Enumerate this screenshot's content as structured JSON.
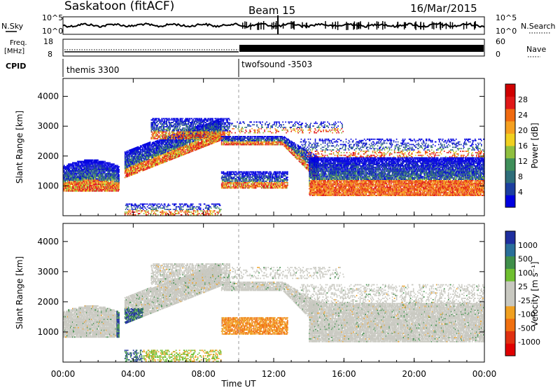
{
  "header": {
    "station": "Saskatoon (fitACF)",
    "beam": "Beam 15",
    "date": "16/Mar/2015"
  },
  "side_labels": {
    "nsky": "N.Sky",
    "freq_line1": "Freq.",
    "freq_line2": "[MHz]",
    "cpid": "CPID",
    "nsearch": "N.Search",
    "nave": "Nave"
  },
  "noise_axis": {
    "top": "10^5",
    "bottom": "10^0",
    "right_top": "10^5",
    "right_bottom": "10^0"
  },
  "freq_axis": {
    "left_ticks": [
      "18",
      "8"
    ],
    "right_ticks": [
      "60",
      "0"
    ]
  },
  "cpid": [
    {
      "label": "themis 3300",
      "start": "00:00"
    },
    {
      "label": "twofsound -3503",
      "start": "10:00"
    }
  ],
  "chart_data": [
    {
      "type": "heatmap",
      "panel": "power",
      "ylabel": "Slant Range [km]",
      "yticks": [
        "1000",
        "2000",
        "3000",
        "4000"
      ],
      "ylim": [
        0,
        4600
      ],
      "xlim": [
        0,
        24
      ],
      "colorbar": {
        "label": "Power [dB]",
        "ticks": [
          "4",
          "8",
          "12",
          "16",
          "20",
          "24",
          "28"
        ],
        "colors": [
          "#0000e0",
          "#1c3fa0",
          "#2e6e7a",
          "#3f8f5a",
          "#8fbf3f",
          "#f0d020",
          "#f5a020",
          "#f06a10",
          "#e01818",
          "#d00000"
        ]
      }
    },
    {
      "type": "heatmap",
      "panel": "velocity",
      "ylabel": "Slant Range [km]",
      "yticks": [
        "1000",
        "2000",
        "3000",
        "4000"
      ],
      "ylim": [
        0,
        4600
      ],
      "xlim": [
        0,
        24
      ],
      "colorbar": {
        "label": "Velocity [m s⁻¹]",
        "ticks": [
          "1000",
          "500",
          "100",
          "25",
          "-25",
          "-100",
          "-500",
          "-1000"
        ],
        "colors": [
          "#1f2f9f",
          "#2a6f9a",
          "#3f8f4a",
          "#6fbf30",
          "#c8c8c0",
          "#c8c8c0",
          "#f0a020",
          "#f07010",
          "#e03010",
          "#e00000"
        ]
      }
    }
  ],
  "xaxis": {
    "ticks": [
      "00:00",
      "04:00",
      "08:00",
      "12:00",
      "16:00",
      "20:00",
      "00:00"
    ],
    "label": "Time UT"
  }
}
